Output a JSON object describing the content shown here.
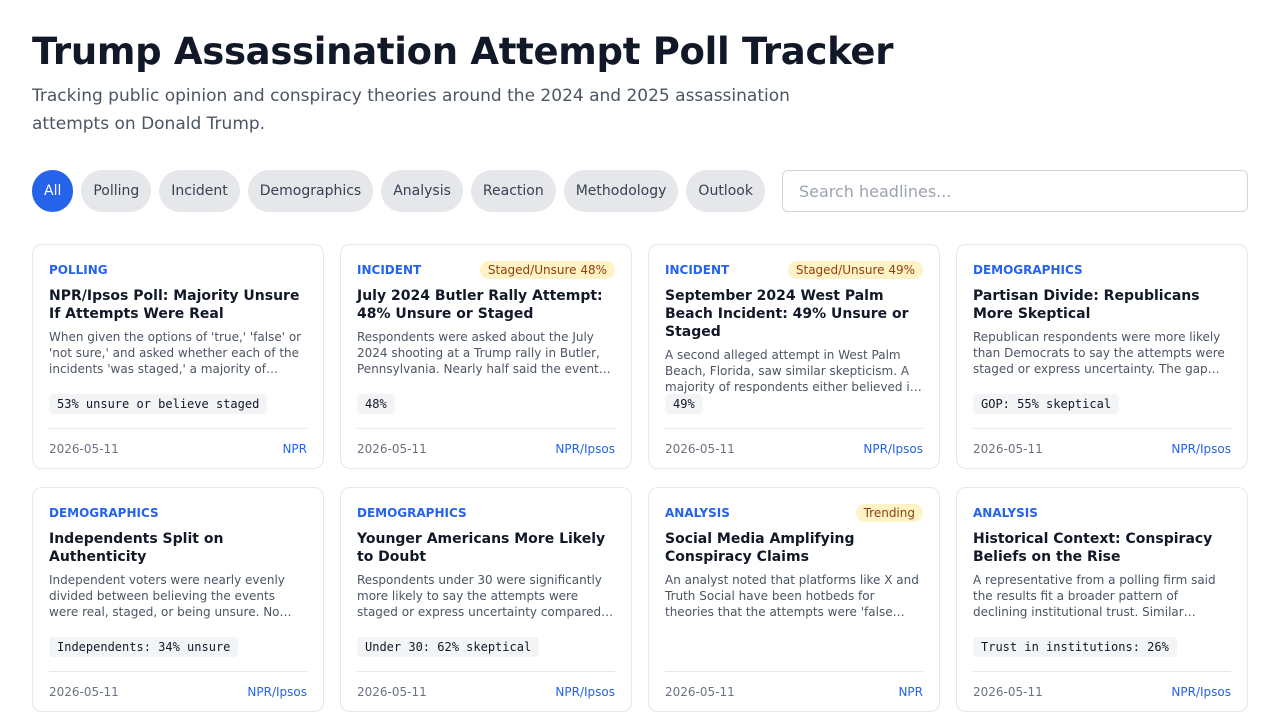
{
  "header": {
    "title": "Trump Assassination Attempt Poll Tracker",
    "subtitle": "Tracking public opinion and conspiracy theories around the 2024 and 2025 assassination attempts on Donald Trump."
  },
  "filters": [
    "All",
    "Polling",
    "Incident",
    "Demographics",
    "Analysis",
    "Reaction",
    "Methodology",
    "Outlook"
  ],
  "search": {
    "placeholder": "Search headlines..."
  },
  "cards": [
    {
      "category": "POLLING",
      "title": "NPR/Ipsos Poll: Majority Unsure If Attempts Were Real",
      "summary": "When given the options of 'true,' 'false' or 'not sure,' and asked whether each of the incidents 'was staged,' a majority of…",
      "stat": "53% unsure or believe staged",
      "date": "2026-05-11",
      "source": "NPR"
    },
    {
      "category": "INCIDENT",
      "badge": "Staged/Unsure 48%",
      "title": "July 2024 Butler Rally Attempt: 48% Unsure or Staged",
      "summary": "Respondents were asked about the July 2024 shooting at a Trump rally in Butler, Pennsylvania. Nearly half said the event wa…",
      "stat": "48%",
      "date": "2026-05-11",
      "source": "NPR/Ipsos"
    },
    {
      "category": "INCIDENT",
      "badge": "Staged/Unsure 49%",
      "title": "September 2024 West Palm Beach Incident: 49% Unsure or Staged",
      "summary": "A second alleged attempt in West Palm Beach, Florida, saw similar skepticism. A majority of respondents either believed it w…",
      "stat": "49%",
      "date": "2026-05-11",
      "source": "NPR/Ipsos"
    },
    {
      "category": "DEMOGRAPHICS",
      "title": "Partisan Divide: Republicans More Skeptical",
      "summary": "Republican respondents were more likely than Democrats to say the attempts were staged or express uncertainty. The gap was…",
      "stat": "GOP: 55% skeptical",
      "date": "2026-05-11",
      "source": "NPR/Ipsos"
    },
    {
      "category": "DEMOGRAPHICS",
      "title": "Independents Split on Authenticity",
      "summary": "Independent voters were nearly evenly divided between believing the events were real, staged, or being unsure. No clear…majority emerged.",
      "stat": "Independents: 34% unsure",
      "date": "2026-05-11",
      "source": "NPR/Ipsos"
    },
    {
      "category": "DEMOGRAPHICS",
      "title": "Younger Americans More Likely to Doubt",
      "summary": "Respondents under 30 were significantly more likely to say the attempts were staged or express uncertainty compared to older a…",
      "stat": "Under 30: 62% skeptical",
      "date": "2026-05-11",
      "source": "NPR/Ipsos"
    },
    {
      "category": "ANALYSIS",
      "badge": "Trending",
      "title": "Social Media Amplifying Conspiracy Claims",
      "summary": "An analyst noted that platforms like X and Truth Social have been hotbeds for theories that the attempts were 'false flags.' The poll… reflects this online discourse.",
      "date": "2026-05-11",
      "source": "NPR"
    },
    {
      "category": "ANALYSIS",
      "title": "Historical Context: Conspiracy Beliefs on the Rise",
      "summary": "A representative from a polling firm said the results fit a broader pattern of declining institutional trust. Similar skepticism has…",
      "stat": "Trust in institutions: 26%",
      "date": "2026-05-11",
      "source": "NPR/Ipsos"
    }
  ]
}
